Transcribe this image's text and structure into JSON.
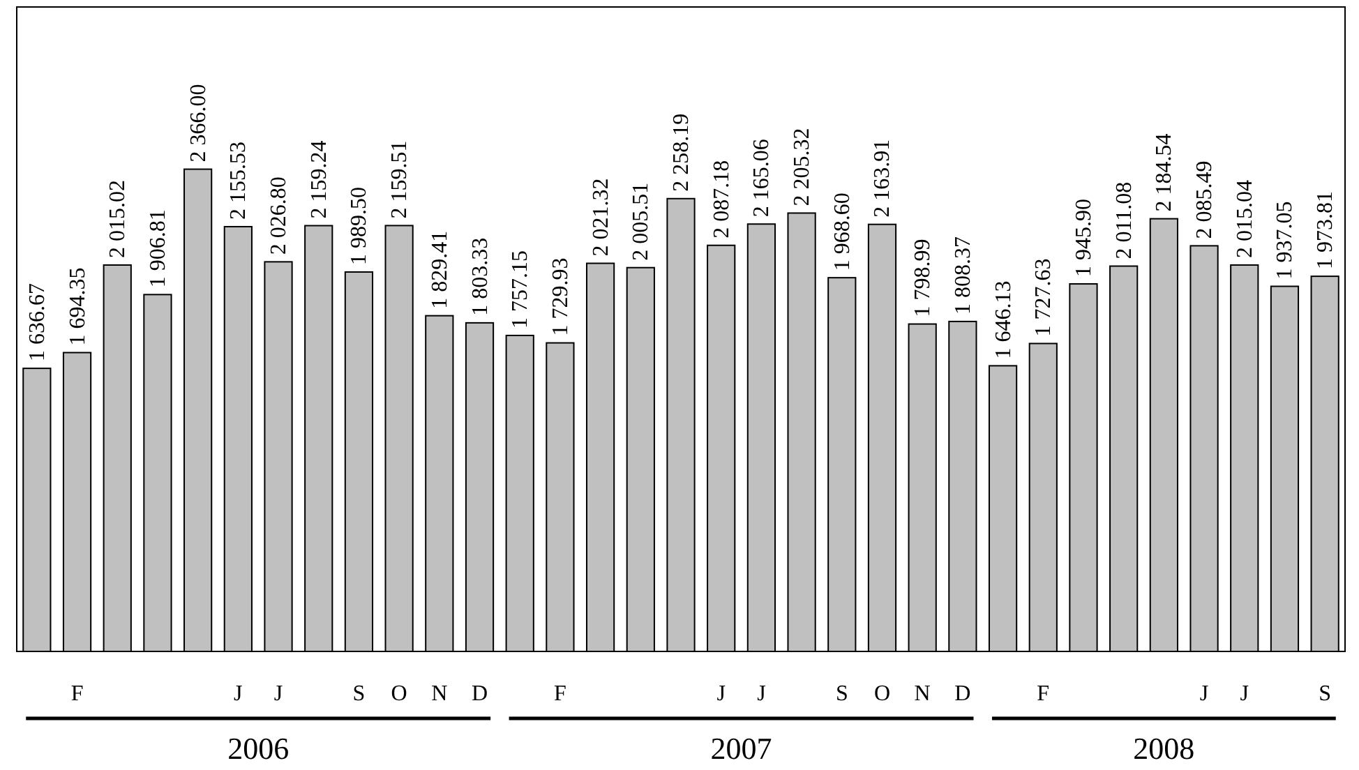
{
  "chart_data": {
    "type": "bar",
    "categories": [
      null,
      "F",
      null,
      null,
      null,
      "J",
      "J",
      null,
      "S",
      "O",
      "N",
      "D",
      null,
      "F",
      null,
      null,
      null,
      "J",
      "J",
      null,
      "S",
      "O",
      "N",
      "D",
      null,
      "F",
      null,
      null,
      null,
      "J",
      "J",
      null,
      "S"
    ],
    "values": [
      1636.67,
      1694.35,
      2015.02,
      1906.81,
      2366.0,
      2155.53,
      2026.8,
      2159.24,
      1989.5,
      2159.51,
      1829.41,
      1803.33,
      1757.15,
      1729.93,
      2021.32,
      2005.51,
      2258.19,
      2087.18,
      2165.06,
      2205.32,
      1968.6,
      2163.91,
      1798.99,
      1808.37,
      1646.13,
      1727.63,
      1945.9,
      2011.08,
      2184.54,
      2085.49,
      2015.04,
      1937.05,
      1973.81
    ],
    "value_labels": [
      "1 636.67",
      "1 694.35",
      "2 015.02",
      "1 906.81",
      "2 366.00",
      "2 155.53",
      "2 026.80",
      "2 159.24",
      "1 989.50",
      "2 159.51",
      "1 829.41",
      "1 803.33",
      "1 757.15",
      "1 729.93",
      "2 021.32",
      "2 005.51",
      "2 258.19",
      "2 087.18",
      "2 165.06",
      "2 205.32",
      "1 968.60",
      "2 163.91",
      "1 798.99",
      "1 808.37",
      "1 646.13",
      "1 727.63",
      "1 945.90",
      "2 011.08",
      "2 184.54",
      "2 085.49",
      "2 015.04",
      "1 937.05",
      "1 973.81"
    ],
    "color": "#c0c0c0",
    "ylim": [
      600,
      2960
    ],
    "tick_labels": "x",
    "grid": false,
    "annotations": [
      "2006",
      "2007",
      "2008"
    ]
  }
}
